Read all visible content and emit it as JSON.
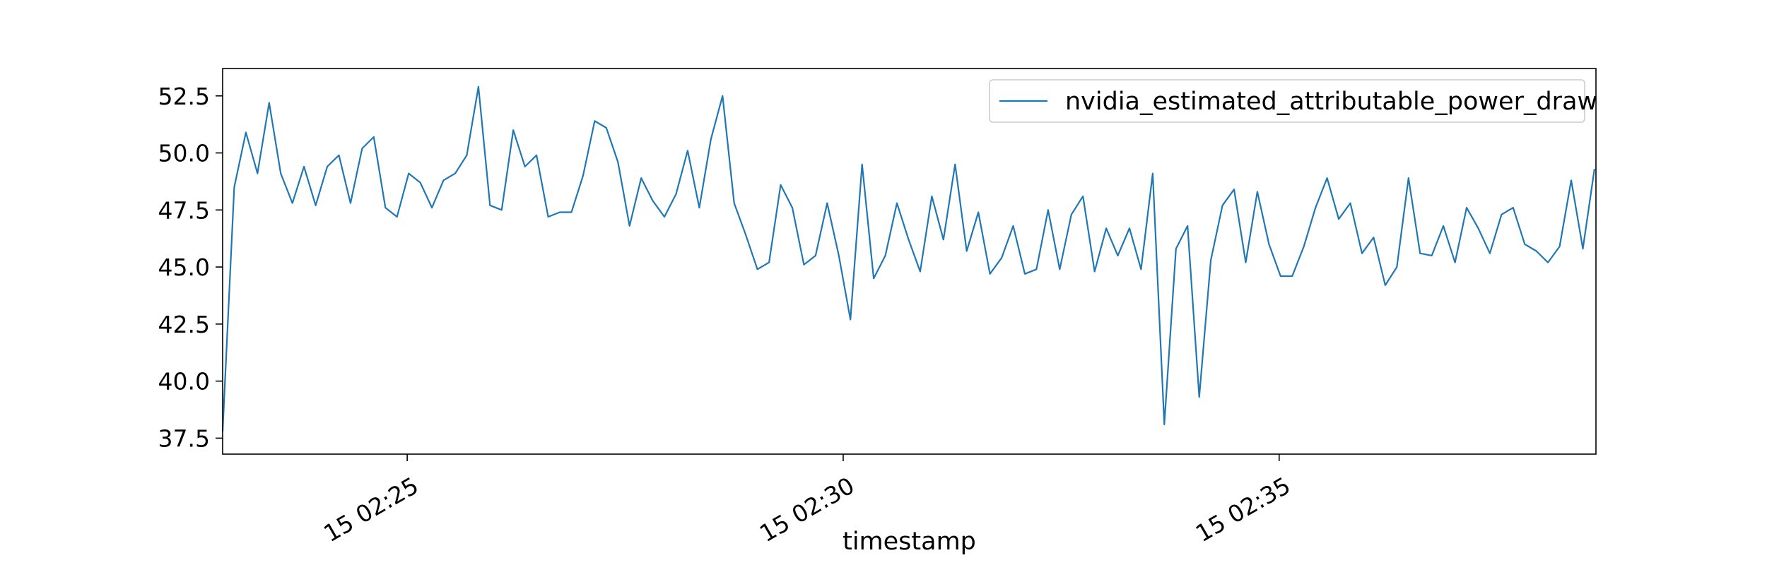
{
  "chart_data": {
    "type": "line",
    "title": "",
    "xlabel": "timestamp",
    "ylabel": "",
    "xlim": [
      "15 02:22:53",
      "15 02:38:38"
    ],
    "ylim": [
      36.8,
      53.7
    ],
    "x_ticks": [
      {
        "value": "15 02:25:00",
        "label": "15 02:25"
      },
      {
        "value": "15 02:30:00",
        "label": "15 02:30"
      },
      {
        "value": "15 02:35:00",
        "label": "15 02:35"
      }
    ],
    "y_ticks": [
      {
        "value": 37.5,
        "label": "37.5"
      },
      {
        "value": 40.0,
        "label": "40.0"
      },
      {
        "value": 42.5,
        "label": "42.5"
      },
      {
        "value": 45.0,
        "label": "45.0"
      },
      {
        "value": 47.5,
        "label": "47.5"
      },
      {
        "value": 50.0,
        "label": "50.0"
      },
      {
        "value": 52.5,
        "label": "52.5"
      }
    ],
    "grid": false,
    "legend_position": "top-right",
    "series": [
      {
        "name": "nvidia_estimated_attributable_power_draw",
        "color": "#1f77b4",
        "x": [
          "15 02:22:53",
          "15 02:23:01",
          "15 02:23:09",
          "15 02:23:17",
          "15 02:23:25",
          "15 02:23:33",
          "15 02:23:41",
          "15 02:23:49",
          "15 02:23:57",
          "15 02:24:05",
          "15 02:24:13",
          "15 02:24:21",
          "15 02:24:29",
          "15 02:24:37",
          "15 02:24:45",
          "15 02:24:53",
          "15 02:25:01",
          "15 02:25:09",
          "15 02:25:17",
          "15 02:25:25",
          "15 02:25:33",
          "15 02:25:41",
          "15 02:25:49",
          "15 02:25:57",
          "15 02:26:05",
          "15 02:26:13",
          "15 02:26:21",
          "15 02:26:29",
          "15 02:26:37",
          "15 02:26:45",
          "15 02:26:53",
          "15 02:27:01",
          "15 02:27:09",
          "15 02:27:17",
          "15 02:27:25",
          "15 02:27:33",
          "15 02:27:41",
          "15 02:27:49",
          "15 02:27:57",
          "15 02:28:05",
          "15 02:28:13",
          "15 02:28:21",
          "15 02:28:29",
          "15 02:28:37",
          "15 02:28:45",
          "15 02:28:53",
          "15 02:29:01",
          "15 02:29:09",
          "15 02:29:17",
          "15 02:29:25",
          "15 02:29:33",
          "15 02:29:41",
          "15 02:29:49",
          "15 02:29:57",
          "15 02:30:05",
          "15 02:30:13",
          "15 02:30:21",
          "15 02:30:29",
          "15 02:30:37",
          "15 02:30:45",
          "15 02:30:53",
          "15 02:31:01",
          "15 02:31:09",
          "15 02:31:17",
          "15 02:31:25",
          "15 02:31:33",
          "15 02:31:41",
          "15 02:31:49",
          "15 02:31:57",
          "15 02:32:05",
          "15 02:32:13",
          "15 02:32:21",
          "15 02:32:29",
          "15 02:32:37",
          "15 02:32:45",
          "15 02:32:53",
          "15 02:33:01",
          "15 02:33:09",
          "15 02:33:17",
          "15 02:33:25",
          "15 02:33:33",
          "15 02:33:41",
          "15 02:33:49",
          "15 02:33:57",
          "15 02:34:05",
          "15 02:34:13",
          "15 02:34:21",
          "15 02:34:29",
          "15 02:34:37",
          "15 02:34:45",
          "15 02:34:53",
          "15 02:35:01",
          "15 02:35:09",
          "15 02:35:17",
          "15 02:35:25",
          "15 02:35:33",
          "15 02:35:41",
          "15 02:35:49",
          "15 02:35:57",
          "15 02:36:05",
          "15 02:36:13",
          "15 02:36:21",
          "15 02:36:29",
          "15 02:36:37",
          "15 02:36:45",
          "15 02:36:53",
          "15 02:37:01",
          "15 02:37:09",
          "15 02:37:17",
          "15 02:37:25",
          "15 02:37:33",
          "15 02:37:41",
          "15 02:37:49",
          "15 02:37:57",
          "15 02:38:05",
          "15 02:38:13",
          "15 02:38:21",
          "15 02:38:29",
          "15 02:38:37"
        ],
        "values": [
          37.8,
          48.5,
          50.9,
          49.1,
          52.2,
          49.1,
          47.8,
          49.4,
          47.7,
          49.4,
          49.9,
          47.8,
          50.2,
          50.7,
          47.6,
          47.2,
          49.1,
          48.7,
          47.6,
          48.8,
          49.1,
          49.9,
          52.9,
          47.7,
          47.5,
          51.0,
          49.4,
          49.9,
          47.2,
          47.4,
          47.4,
          49.0,
          51.4,
          51.1,
          49.6,
          46.8,
          48.9,
          47.9,
          47.2,
          48.2,
          50.1,
          47.6,
          50.6,
          52.5,
          47.8,
          46.4,
          44.9,
          45.2,
          48.6,
          47.6,
          45.1,
          45.5,
          47.8,
          45.5,
          42.7,
          49.5,
          44.5,
          45.5,
          47.8,
          46.2,
          44.8,
          48.1,
          46.2,
          49.5,
          45.7,
          47.4,
          44.7,
          45.4,
          46.8,
          44.7,
          44.9,
          47.5,
          44.9,
          47.3,
          48.1,
          44.8,
          46.7,
          45.5,
          46.7,
          44.9,
          49.1,
          38.1,
          45.8,
          46.8,
          39.3,
          45.3,
          47.7,
          48.4,
          45.2,
          48.3,
          46.0,
          44.6,
          44.6,
          45.9,
          47.6,
          48.9,
          47.1,
          47.8,
          45.6,
          46.3,
          44.2,
          45.0,
          48.9,
          45.6,
          45.5,
          46.8,
          45.2,
          47.6,
          46.7,
          45.6,
          47.3,
          47.6,
          46.0,
          45.7,
          45.2,
          45.9,
          48.8,
          45.8,
          49.3
        ]
      }
    ]
  }
}
